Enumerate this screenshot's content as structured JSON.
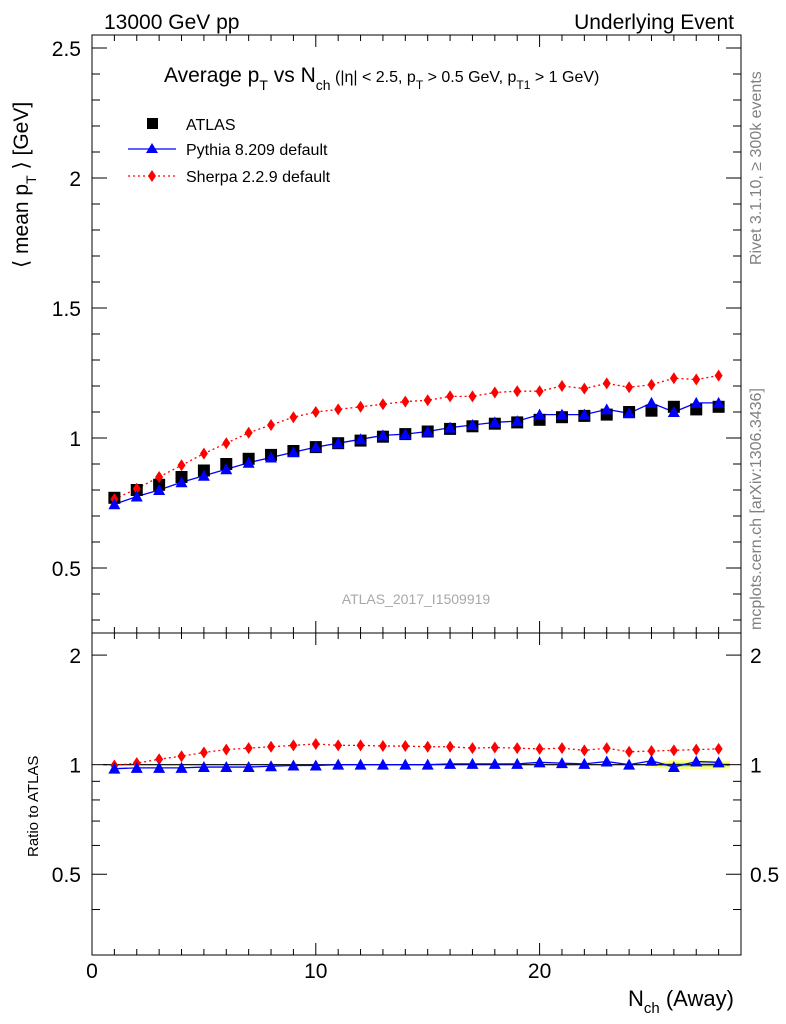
{
  "header": {
    "left": "13000 GeV pp",
    "right": "Underlying Event"
  },
  "title": {
    "p1": "Average p",
    "p1_sub": "T",
    "p2": " vs N",
    "p2_sub": "ch",
    "p3": " (|η| < 2.5, p",
    "p3_sub": "T",
    "p4": " > 0.5 GeV, p",
    "p4_sub": "T1",
    "p5": " > 1 GeV)"
  },
  "y_label": {
    "a": "⟨ mean p",
    "sub": "T",
    "b": " ⟩ [GeV]"
  },
  "x_label": {
    "a": "N",
    "sub": "ch",
    "b": " (Away)"
  },
  "ratio_label": "Ratio to ATLAS",
  "watermark": "ATLAS_2017_I1509919",
  "side_right_top": "Rivet 3.1.10, ≥ 300k events",
  "side_right_bottom": "mcplots.cern.ch [arXiv:1306.3436]",
  "colors": {
    "atlas": "#000000",
    "pythia": "#0000ff",
    "sherpa": "#ff0000",
    "band_outer": "#ffff80",
    "band_inner": "#9ee56b"
  },
  "chart_data": [
    {
      "type": "scatter",
      "panel": "main",
      "xlim": [
        0,
        29
      ],
      "ylim": [
        0.25,
        2.55
      ],
      "yticks": [
        0.5,
        1,
        1.5,
        2,
        2.5
      ],
      "ytick_labels": [
        "0.5",
        "1",
        "1.5",
        "2",
        "2.5"
      ],
      "legend_position": "top-left",
      "series": [
        {
          "name": "ATLAS",
          "marker": "square",
          "x": [
            1,
            2,
            3,
            4,
            5,
            6,
            7,
            8,
            9,
            10,
            11,
            12,
            13,
            14,
            15,
            16,
            17,
            18,
            19,
            20,
            21,
            22,
            23,
            24,
            25,
            26,
            27,
            28
          ],
          "y": [
            0.77,
            0.8,
            0.82,
            0.85,
            0.875,
            0.9,
            0.92,
            0.935,
            0.95,
            0.965,
            0.98,
            0.99,
            1.005,
            1.015,
            1.025,
            1.035,
            1.045,
            1.055,
            1.06,
            1.07,
            1.08,
            1.085,
            1.09,
            1.1,
            1.105,
            1.12,
            1.11,
            1.12
          ]
        },
        {
          "name": "Pythia 8.209 default",
          "marker": "triangle",
          "x": [
            1,
            2,
            3,
            4,
            5,
            6,
            7,
            8,
            9,
            10,
            11,
            12,
            13,
            14,
            15,
            16,
            17,
            18,
            19,
            20,
            21,
            22,
            23,
            24,
            25,
            26,
            27,
            28
          ],
          "y": [
            0.745,
            0.775,
            0.8,
            0.83,
            0.855,
            0.88,
            0.905,
            0.925,
            0.945,
            0.965,
            0.98,
            0.995,
            1.01,
            1.015,
            1.025,
            1.04,
            1.05,
            1.06,
            1.065,
            1.09,
            1.09,
            1.09,
            1.11,
            1.095,
            1.135,
            1.1,
            1.135,
            1.135
          ]
        },
        {
          "name": "Sherpa 2.2.9 default",
          "marker": "diamond",
          "x": [
            1,
            2,
            3,
            4,
            5,
            6,
            7,
            8,
            9,
            10,
            11,
            12,
            13,
            14,
            15,
            16,
            17,
            18,
            19,
            20,
            21,
            22,
            23,
            24,
            25,
            26,
            27,
            28
          ],
          "y": [
            0.765,
            0.805,
            0.85,
            0.895,
            0.94,
            0.98,
            1.02,
            1.05,
            1.08,
            1.1,
            1.11,
            1.12,
            1.13,
            1.14,
            1.145,
            1.16,
            1.16,
            1.175,
            1.18,
            1.18,
            1.2,
            1.19,
            1.21,
            1.195,
            1.205,
            1.23,
            1.225,
            1.24
          ]
        }
      ]
    },
    {
      "type": "line",
      "panel": "ratio",
      "xlim": [
        0,
        29
      ],
      "ylim": [
        0.3,
        2.3
      ],
      "yticks": [
        0.5,
        1,
        2
      ],
      "ytick_labels": [
        "0.5",
        "1",
        "2"
      ],
      "xticks": [
        0,
        10,
        20
      ],
      "xtick_labels": [
        "0",
        "10",
        "20"
      ],
      "series": [
        {
          "name": "Pythia 8.209 default",
          "marker": "triangle",
          "x": [
            1,
            2,
            3,
            4,
            5,
            6,
            7,
            8,
            9,
            10,
            11,
            12,
            13,
            14,
            15,
            16,
            17,
            18,
            19,
            20,
            21,
            22,
            23,
            24,
            25,
            26,
            27,
            28
          ],
          "y": [
            0.975,
            0.98,
            0.98,
            0.98,
            0.985,
            0.985,
            0.985,
            0.99,
            0.995,
            0.995,
            1.0,
            1.0,
            1.0,
            1.0,
            1.0,
            1.005,
            1.005,
            1.005,
            1.005,
            1.015,
            1.01,
            1.005,
            1.02,
            1.0,
            1.025,
            0.985,
            1.02,
            1.015
          ]
        },
        {
          "name": "Sherpa 2.2.9 default",
          "marker": "diamond",
          "x": [
            1,
            2,
            3,
            4,
            5,
            6,
            7,
            8,
            9,
            10,
            11,
            12,
            13,
            14,
            15,
            16,
            17,
            18,
            19,
            20,
            21,
            22,
            23,
            24,
            25,
            26,
            27,
            28
          ],
          "y": [
            0.995,
            1.01,
            1.035,
            1.055,
            1.08,
            1.1,
            1.11,
            1.12,
            1.13,
            1.14,
            1.13,
            1.13,
            1.125,
            1.125,
            1.12,
            1.12,
            1.11,
            1.115,
            1.11,
            1.105,
            1.11,
            1.095,
            1.11,
            1.085,
            1.09,
            1.095,
            1.1,
            1.105
          ]
        }
      ]
    }
  ]
}
